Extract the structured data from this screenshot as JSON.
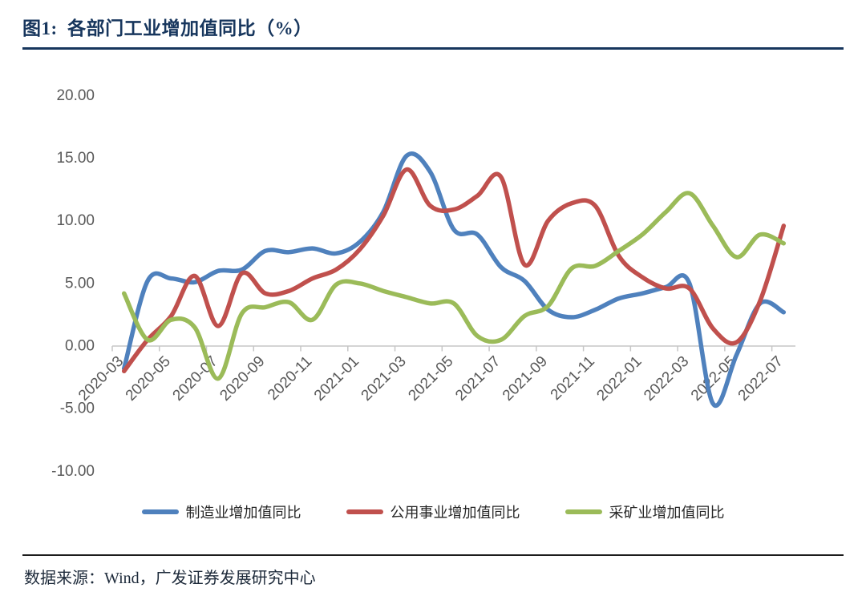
{
  "header": {
    "title": "图1:  各部门工业增加值同比（%）"
  },
  "footer": {
    "source": "数据来源：Wind，广发证券发展研究中心"
  },
  "colors": {
    "title": "#17365D",
    "axis_line": "#C6C6C6",
    "axis_text": "#595959",
    "manufacturing": "#4F81BD",
    "utilities": "#C0504D",
    "mining": "#9BBB59"
  },
  "chart_data": {
    "type": "line",
    "title": "各部门工业增加值同比（%）",
    "smoothed": true,
    "grid": false,
    "legend_position": "bottom",
    "ylim": [
      -10,
      20
    ],
    "y_ticks": [
      "20.00",
      "15.00",
      "10.00",
      "5.00",
      "0.00",
      "-5.00",
      "-10.00"
    ],
    "x_label_interval": 2,
    "x": [
      "2020-03",
      "2020-04",
      "2020-05",
      "2020-06",
      "2020-07",
      "2020-08",
      "2020-09",
      "2020-10",
      "2020-11",
      "2020-12",
      "2021-01",
      "2021-02",
      "2021-03",
      "2021-04",
      "2021-05",
      "2021-06",
      "2021-07",
      "2021-08",
      "2021-09",
      "2021-10",
      "2021-11",
      "2021-12",
      "2022-01",
      "2022-02",
      "2022-03",
      "2022-04",
      "2022-05",
      "2022-06",
      "2022-07"
    ],
    "series": [
      {
        "key": "manufacturing",
        "name": "制造业增加值同比",
        "color": "#4F81BD",
        "values": [
          -1.8,
          5.2,
          5.4,
          5.1,
          6.0,
          6.1,
          7.6,
          7.5,
          7.8,
          7.4,
          8.3,
          10.7,
          15.2,
          13.9,
          9.3,
          8.9,
          6.3,
          5.2,
          2.9,
          2.3,
          2.9,
          3.8,
          4.2,
          4.7,
          5.0,
          -4.6,
          -0.7,
          3.4,
          2.7
        ]
      },
      {
        "key": "utilities",
        "name": "公用事业增加值同比",
        "color": "#C0504D",
        "values": [
          -2.0,
          0.5,
          2.4,
          5.6,
          1.6,
          5.8,
          4.2,
          4.4,
          5.4,
          6.1,
          7.7,
          10.4,
          14.1,
          11.2,
          10.9,
          12.0,
          13.5,
          6.5,
          10.0,
          11.4,
          11.2,
          7.2,
          5.5,
          4.6,
          4.6,
          1.4,
          0.3,
          3.6,
          9.6
        ]
      },
      {
        "key": "mining",
        "name": "采矿业增加值同比",
        "color": "#9BBB59",
        "values": [
          4.2,
          0.5,
          2.1,
          1.5,
          -2.6,
          2.6,
          3.1,
          3.5,
          2.1,
          4.9,
          5.0,
          4.4,
          3.9,
          3.4,
          3.4,
          0.8,
          0.5,
          2.4,
          3.2,
          6.2,
          6.4,
          7.6,
          8.9,
          10.7,
          12.2,
          9.6,
          7.1,
          8.9,
          8.2
        ]
      }
    ]
  }
}
